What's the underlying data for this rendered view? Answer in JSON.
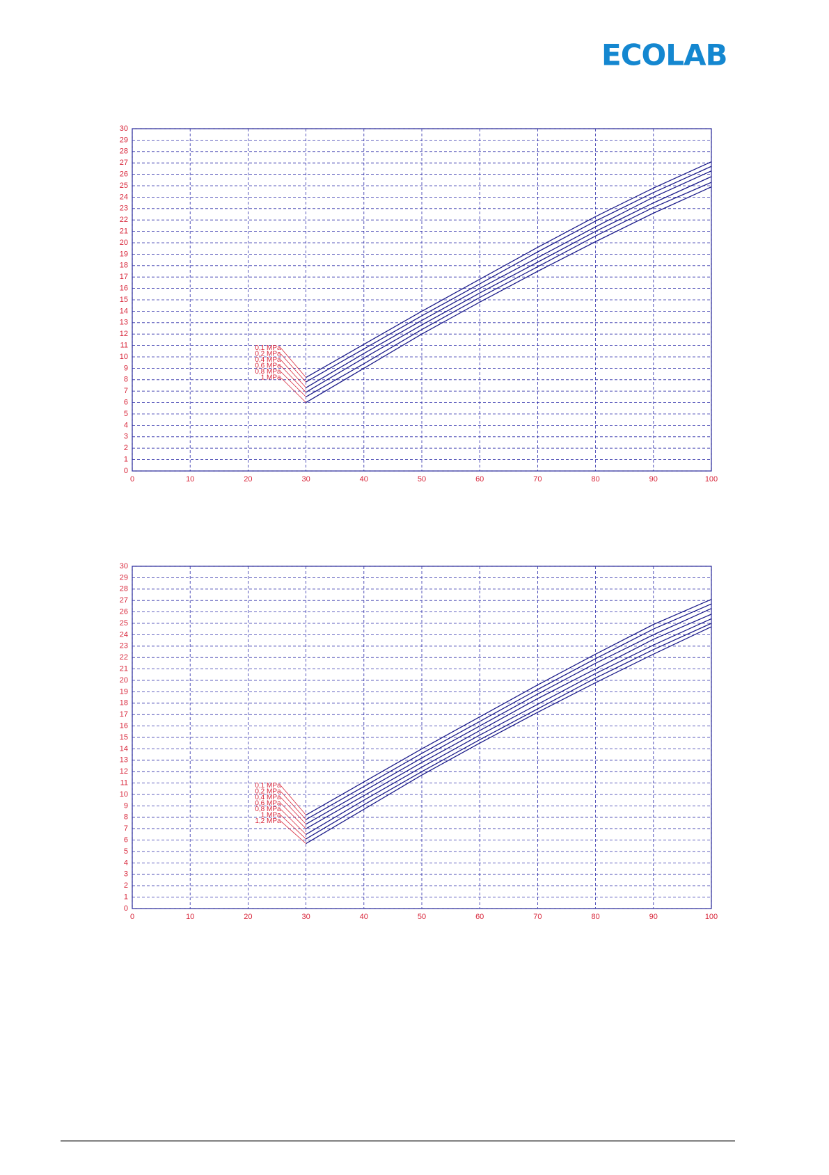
{
  "header": {
    "logo": "ECOLAB"
  },
  "chart_data": [
    {
      "type": "line",
      "x": [
        30,
        40,
        50,
        60,
        70,
        80,
        90,
        100
      ],
      "series": [
        {
          "name": "0,1 MPa",
          "color": "#1c1c8a",
          "values": [
            8.2,
            11.1,
            14.0,
            16.8,
            19.6,
            22.3,
            24.8,
            27.1
          ]
        },
        {
          "name": "0,2 MPa",
          "color": "#1c1c8a",
          "values": [
            7.8,
            10.7,
            13.6,
            16.4,
            19.2,
            21.9,
            24.4,
            26.7
          ]
        },
        {
          "name": "0,4 MPa",
          "color": "#1c1c8a",
          "values": [
            7.3,
            10.3,
            13.2,
            16.0,
            18.7,
            21.4,
            24.0,
            26.3
          ]
        },
        {
          "name": "0,6 MPa",
          "color": "#1c1c8a",
          "values": [
            6.9,
            9.9,
            12.8,
            15.6,
            18.3,
            21.0,
            23.5,
            25.8
          ]
        },
        {
          "name": "0,8 MPa",
          "color": "#1c1c8a",
          "values": [
            6.5,
            9.4,
            12.4,
            15.2,
            17.9,
            20.6,
            23.1,
            25.3
          ]
        },
        {
          "name": "1 MPa",
          "color": "#1c1c8a",
          "values": [
            6.0,
            9.0,
            12.0,
            14.8,
            17.5,
            20.1,
            22.6,
            24.9
          ]
        }
      ],
      "xlim": [
        0,
        100
      ],
      "xticks": [
        0,
        10,
        20,
        30,
        40,
        50,
        60,
        70,
        80,
        90,
        100
      ],
      "ylim": [
        0,
        30
      ],
      "yticks": [
        0,
        1,
        2,
        3,
        4,
        5,
        6,
        7,
        8,
        9,
        10,
        11,
        12,
        13,
        14,
        15,
        16,
        17,
        18,
        19,
        20,
        21,
        22,
        23,
        24,
        25,
        26,
        27,
        28,
        29,
        30
      ],
      "grid": true
    },
    {
      "type": "line",
      "x": [
        30,
        40,
        50,
        60,
        70,
        80,
        90,
        100
      ],
      "series": [
        {
          "name": "0,1 MPa",
          "color": "#1c1c8a",
          "values": [
            8.2,
            11.1,
            14.0,
            16.8,
            19.6,
            22.3,
            24.9,
            27.1
          ]
        },
        {
          "name": "0,2 MPa",
          "color": "#1c1c8a",
          "values": [
            7.8,
            10.7,
            13.6,
            16.4,
            19.2,
            21.9,
            24.5,
            26.7
          ]
        },
        {
          "name": "0,4 MPa",
          "color": "#1c1c8a",
          "values": [
            7.4,
            10.3,
            13.2,
            16.0,
            18.8,
            21.5,
            24.0,
            26.3
          ]
        },
        {
          "name": "0,6 MPa",
          "color": "#1c1c8a",
          "values": [
            7.0,
            9.9,
            12.8,
            15.6,
            18.4,
            21.0,
            23.6,
            25.8
          ]
        },
        {
          "name": "0,8 MPa",
          "color": "#1c1c8a",
          "values": [
            6.5,
            9.5,
            12.4,
            15.2,
            17.9,
            20.6,
            23.1,
            25.4
          ]
        },
        {
          "name": "1 MPa",
          "color": "#1c1c8a",
          "values": [
            6.1,
            9.1,
            12.0,
            14.8,
            17.5,
            20.2,
            22.7,
            25.0
          ]
        },
        {
          "name": "1,2 MPa",
          "color": "#1c1c8a",
          "values": [
            5.7,
            8.7,
            11.7,
            14.5,
            17.2,
            19.8,
            22.3,
            24.7
          ]
        }
      ],
      "xlim": [
        0,
        100
      ],
      "xticks": [
        0,
        10,
        20,
        30,
        40,
        50,
        60,
        70,
        80,
        90,
        100
      ],
      "ylim": [
        0,
        30
      ],
      "yticks": [
        0,
        1,
        2,
        3,
        4,
        5,
        6,
        7,
        8,
        9,
        10,
        11,
        12,
        13,
        14,
        15,
        16,
        17,
        18,
        19,
        20,
        21,
        22,
        23,
        24,
        25,
        26,
        27,
        28,
        29,
        30
      ],
      "grid": true
    }
  ]
}
